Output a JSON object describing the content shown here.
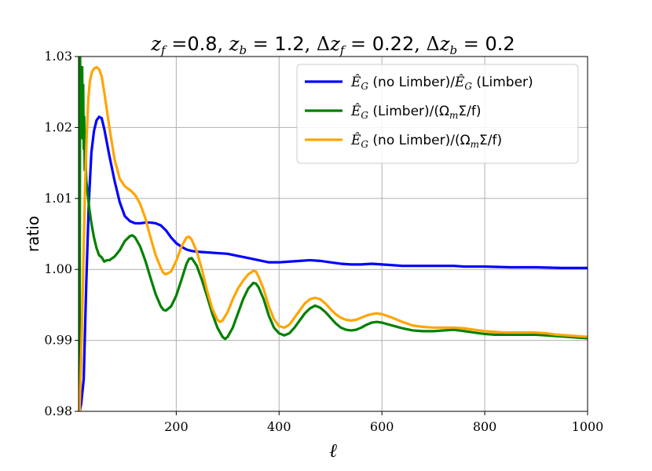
{
  "chart_data": {
    "type": "line",
    "title": "z_f =0.8, z_b = 1.2, Δz_f = 0.22, Δz_b = 0.2",
    "xlabel": "ℓ",
    "ylabel": "ratio",
    "xlim": [
      10,
      1000
    ],
    "ylim": [
      0.98,
      1.03
    ],
    "xticks": [
      200,
      400,
      600,
      800,
      1000
    ],
    "yticks": [
      0.98,
      0.99,
      1.0,
      1.01,
      1.02,
      1.03
    ],
    "ytick_labels": [
      "0.98",
      "0.99",
      "1.00",
      "1.01",
      "1.02",
      "1.03"
    ],
    "grid": true,
    "legend_position": "top-right",
    "series": [
      {
        "name": "Ê_G (no Limber)/Ê_G (Limber)",
        "color": "#0000ff",
        "points": [
          [
            12,
            0.98
          ],
          [
            15,
            0.981
          ],
          [
            20,
            0.9845
          ],
          [
            25,
            0.998
          ],
          [
            30,
            1.0095
          ],
          [
            35,
            1.0165
          ],
          [
            40,
            1.0195
          ],
          [
            45,
            1.021
          ],
          [
            50,
            1.0215
          ],
          [
            55,
            1.0213
          ],
          [
            60,
            1.0198
          ],
          [
            70,
            1.016
          ],
          [
            80,
            1.0125
          ],
          [
            90,
            1.0095
          ],
          [
            100,
            1.0075
          ],
          [
            110,
            1.0068
          ],
          [
            120,
            1.0065
          ],
          [
            130,
            1.0065
          ],
          [
            140,
            1.0066
          ],
          [
            150,
            1.0066
          ],
          [
            160,
            1.0065
          ],
          [
            170,
            1.0062
          ],
          [
            180,
            1.0055
          ],
          [
            190,
            1.0045
          ],
          [
            200,
            1.0037
          ],
          [
            210,
            1.0032
          ],
          [
            220,
            1.0028
          ],
          [
            230,
            1.0026
          ],
          [
            240,
            1.0025
          ],
          [
            260,
            1.0024
          ],
          [
            280,
            1.0023
          ],
          [
            300,
            1.0022
          ],
          [
            320,
            1.0019
          ],
          [
            340,
            1.0016
          ],
          [
            360,
            1.0013
          ],
          [
            380,
            1.001
          ],
          [
            400,
            1.001
          ],
          [
            420,
            1.0011
          ],
          [
            440,
            1.0012
          ],
          [
            460,
            1.0013
          ],
          [
            480,
            1.0012
          ],
          [
            500,
            1.001
          ],
          [
            520,
            1.0008
          ],
          [
            540,
            1.0007
          ],
          [
            560,
            1.0007
          ],
          [
            580,
            1.0008
          ],
          [
            600,
            1.0007
          ],
          [
            620,
            1.0006
          ],
          [
            640,
            1.0005
          ],
          [
            660,
            1.0005
          ],
          [
            680,
            1.0005
          ],
          [
            700,
            1.0005
          ],
          [
            720,
            1.0005
          ],
          [
            740,
            1.0005
          ],
          [
            760,
            1.0004
          ],
          [
            780,
            1.0004
          ],
          [
            800,
            1.0004
          ],
          [
            850,
            1.0003
          ],
          [
            900,
            1.0003
          ],
          [
            950,
            1.0002
          ],
          [
            1000,
            1.0002
          ]
        ]
      },
      {
        "name": "Ê_G (Limber)/(Ω_m Σ/f)",
        "color": "#008000",
        "points": [
          [
            12,
            0.98
          ],
          [
            13,
            1.03
          ],
          [
            14,
            1.022
          ],
          [
            15,
            1.027
          ],
          [
            16,
            1.0185
          ],
          [
            17,
            1.0285
          ],
          [
            18,
            1.019
          ],
          [
            19,
            1.026
          ],
          [
            20,
            1.017
          ],
          [
            21,
            1.0215
          ],
          [
            22,
            1.014
          ],
          [
            23,
            1.0175
          ],
          [
            25,
            1.0125
          ],
          [
            28,
            1.0105
          ],
          [
            31,
            1.0085
          ],
          [
            35,
            1.0065
          ],
          [
            40,
            1.0045
          ],
          [
            45,
            1.003
          ],
          [
            50,
            1.002
          ],
          [
            55,
            1.0017
          ],
          [
            60,
            1.0011
          ],
          [
            65,
            1.0013
          ],
          [
            70,
            1.0013
          ],
          [
            80,
            1.0018
          ],
          [
            90,
            1.0027
          ],
          [
            100,
            1.004
          ],
          [
            110,
            1.0047
          ],
          [
            115,
            1.0048
          ],
          [
            120,
            1.0045
          ],
          [
            130,
            1.0032
          ],
          [
            140,
            1.0012
          ],
          [
            150,
            0.9988
          ],
          [
            160,
            0.9965
          ],
          [
            170,
            0.9948
          ],
          [
            175,
            0.9943
          ],
          [
            180,
            0.9942
          ],
          [
            190,
            0.9948
          ],
          [
            200,
            0.9963
          ],
          [
            210,
            0.9985
          ],
          [
            220,
            1.0008
          ],
          [
            225,
            1.0015
          ],
          [
            230,
            1.0016
          ],
          [
            240,
            1.0005
          ],
          [
            250,
            0.9985
          ],
          [
            260,
            0.9962
          ],
          [
            270,
            0.9938
          ],
          [
            280,
            0.9918
          ],
          [
            290,
            0.9905
          ],
          [
            295,
            0.9902
          ],
          [
            300,
            0.9905
          ],
          [
            310,
            0.9918
          ],
          [
            320,
            0.9938
          ],
          [
            330,
            0.9958
          ],
          [
            340,
            0.9973
          ],
          [
            350,
            0.9981
          ],
          [
            355,
            0.998
          ],
          [
            360,
            0.9975
          ],
          [
            370,
            0.9958
          ],
          [
            380,
            0.9935
          ],
          [
            390,
            0.9918
          ],
          [
            400,
            0.991
          ],
          [
            410,
            0.9907
          ],
          [
            420,
            0.991
          ],
          [
            430,
            0.9918
          ],
          [
            440,
            0.9928
          ],
          [
            450,
            0.9938
          ],
          [
            460,
            0.9945
          ],
          [
            470,
            0.9949
          ],
          [
            480,
            0.9946
          ],
          [
            490,
            0.994
          ],
          [
            500,
            0.9932
          ],
          [
            510,
            0.9924
          ],
          [
            520,
            0.9918
          ],
          [
            530,
            0.9915
          ],
          [
            540,
            0.9914
          ],
          [
            550,
            0.9915
          ],
          [
            560,
            0.9918
          ],
          [
            570,
            0.9922
          ],
          [
            580,
            0.9925
          ],
          [
            590,
            0.9926
          ],
          [
            600,
            0.9925
          ],
          [
            620,
            0.9921
          ],
          [
            640,
            0.9917
          ],
          [
            660,
            0.9914
          ],
          [
            680,
            0.9913
          ],
          [
            700,
            0.9913
          ],
          [
            720,
            0.9914
          ],
          [
            740,
            0.9915
          ],
          [
            760,
            0.9913
          ],
          [
            780,
            0.9911
          ],
          [
            800,
            0.9909
          ],
          [
            820,
            0.9908
          ],
          [
            840,
            0.9908
          ],
          [
            860,
            0.9908
          ],
          [
            880,
            0.9908
          ],
          [
            900,
            0.9908
          ],
          [
            920,
            0.9907
          ],
          [
            940,
            0.9906
          ],
          [
            960,
            0.9905
          ],
          [
            980,
            0.9904
          ],
          [
            1000,
            0.9903
          ]
        ]
      },
      {
        "name": "Ê_G (no Limber)/(Ω_m Σ/f)",
        "color": "#ffa500",
        "points": [
          [
            12,
            0.98
          ],
          [
            14,
            0.985
          ],
          [
            17,
            0.993
          ],
          [
            20,
            1.003
          ],
          [
            23,
            1.0125
          ],
          [
            26,
            1.019
          ],
          [
            29,
            1.024
          ],
          [
            32,
            1.0265
          ],
          [
            36,
            1.0278
          ],
          [
            40,
            1.0283
          ],
          [
            45,
            1.0285
          ],
          [
            50,
            1.0282
          ],
          [
            55,
            1.0272
          ],
          [
            60,
            1.025
          ],
          [
            70,
            1.02
          ],
          [
            80,
            1.0155
          ],
          [
            90,
            1.0128
          ],
          [
            100,
            1.0117
          ],
          [
            110,
            1.0112
          ],
          [
            120,
            1.0105
          ],
          [
            130,
            1.0092
          ],
          [
            140,
            1.0072
          ],
          [
            150,
            1.0045
          ],
          [
            160,
            1.002
          ],
          [
            170,
            1.0002
          ],
          [
            175,
            0.9995
          ],
          [
            180,
            0.9993
          ],
          [
            190,
            0.9997
          ],
          [
            200,
            1.0012
          ],
          [
            210,
            1.0032
          ],
          [
            220,
            1.0045
          ],
          [
            225,
            1.0046
          ],
          [
            230,
            1.0042
          ],
          [
            240,
            1.0025
          ],
          [
            250,
            1.0
          ],
          [
            260,
            0.997
          ],
          [
            270,
            0.9945
          ],
          [
            280,
            0.9929
          ],
          [
            285,
            0.9926
          ],
          [
            290,
            0.9928
          ],
          [
            300,
            0.994
          ],
          [
            310,
            0.9958
          ],
          [
            320,
            0.9973
          ],
          [
            330,
            0.9984
          ],
          [
            340,
            0.9993
          ],
          [
            350,
            0.9998
          ],
          [
            355,
            0.9997
          ],
          [
            360,
            0.999
          ],
          [
            370,
            0.9972
          ],
          [
            380,
            0.9948
          ],
          [
            390,
            0.993
          ],
          [
            400,
            0.992
          ],
          [
            410,
            0.9918
          ],
          [
            420,
            0.9922
          ],
          [
            430,
            0.9932
          ],
          [
            440,
            0.9942
          ],
          [
            450,
            0.9952
          ],
          [
            460,
            0.9958
          ],
          [
            470,
            0.996
          ],
          [
            480,
            0.9958
          ],
          [
            490,
            0.9952
          ],
          [
            500,
            0.9944
          ],
          [
            510,
            0.9937
          ],
          [
            520,
            0.9932
          ],
          [
            530,
            0.9929
          ],
          [
            540,
            0.9928
          ],
          [
            550,
            0.9929
          ],
          [
            560,
            0.9932
          ],
          [
            570,
            0.9935
          ],
          [
            580,
            0.9937
          ],
          [
            590,
            0.9938
          ],
          [
            600,
            0.9937
          ],
          [
            620,
            0.9932
          ],
          [
            640,
            0.9926
          ],
          [
            660,
            0.9921
          ],
          [
            680,
            0.9919
          ],
          [
            700,
            0.9918
          ],
          [
            720,
            0.9918
          ],
          [
            740,
            0.9918
          ],
          [
            760,
            0.9917
          ],
          [
            780,
            0.9915
          ],
          [
            800,
            0.9913
          ],
          [
            820,
            0.9912
          ],
          [
            840,
            0.9911
          ],
          [
            860,
            0.9911
          ],
          [
            880,
            0.9911
          ],
          [
            900,
            0.9911
          ],
          [
            920,
            0.991
          ],
          [
            940,
            0.9908
          ],
          [
            960,
            0.9907
          ],
          [
            980,
            0.9906
          ],
          [
            1000,
            0.9905
          ]
        ]
      }
    ]
  },
  "legend": {
    "entries": [
      {
        "lhs": "Ê",
        "sub": "G",
        "mid": " (no Limber)/",
        "rhs": "Ê",
        "sub2": "G",
        "tail": " (Limber)",
        "color": "#0000ff"
      },
      {
        "lhs": "Ê",
        "sub": "G",
        "mid": " (Limber)/(Ω",
        "rhs": "",
        "sub2": "m",
        "tail": "Σ/f)",
        "color": "#008000"
      },
      {
        "lhs": "Ê",
        "sub": "G",
        "mid": " (no Limber)/(Ω",
        "rhs": "",
        "sub2": "m",
        "tail": "Σ/f)",
        "color": "#ffa500"
      }
    ]
  }
}
